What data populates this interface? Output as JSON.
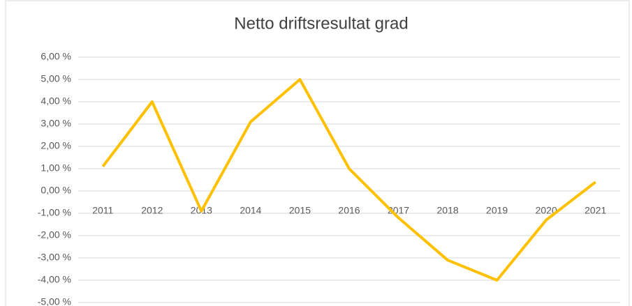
{
  "chart_data": {
    "type": "line",
    "title": "Netto driftsresultat grad",
    "categories": [
      "2011",
      "2012",
      "2013",
      "2014",
      "2015",
      "2016",
      "2017",
      "2018",
      "2019",
      "2020",
      "2021"
    ],
    "series": [
      {
        "color": "#ffc000",
        "values": [
          1.1,
          4.0,
          -0.9,
          3.1,
          5.0,
          1.0,
          -1.2,
          -3.1,
          -4.0,
          -1.3,
          0.4
        ]
      }
    ],
    "ylim": [
      -5,
      6
    ],
    "yticks": [
      {
        "value": 6,
        "label": "6,00 %"
      },
      {
        "value": 5,
        "label": "5,00 %"
      },
      {
        "value": 4,
        "label": "4,00 %"
      },
      {
        "value": 3,
        "label": "3,00 %"
      },
      {
        "value": 2,
        "label": "2,00 %"
      },
      {
        "value": 1,
        "label": "1,00 %"
      },
      {
        "value": 0,
        "label": "0,00 %"
      },
      {
        "value": -1,
        "label": "-1,00 %"
      },
      {
        "value": -2,
        "label": "-2,00 %"
      },
      {
        "value": -3,
        "label": "-3,00 %"
      },
      {
        "value": -4,
        "label": "-4,00 %"
      },
      {
        "value": -5,
        "label": "-5,00 %"
      }
    ],
    "grid": true
  }
}
